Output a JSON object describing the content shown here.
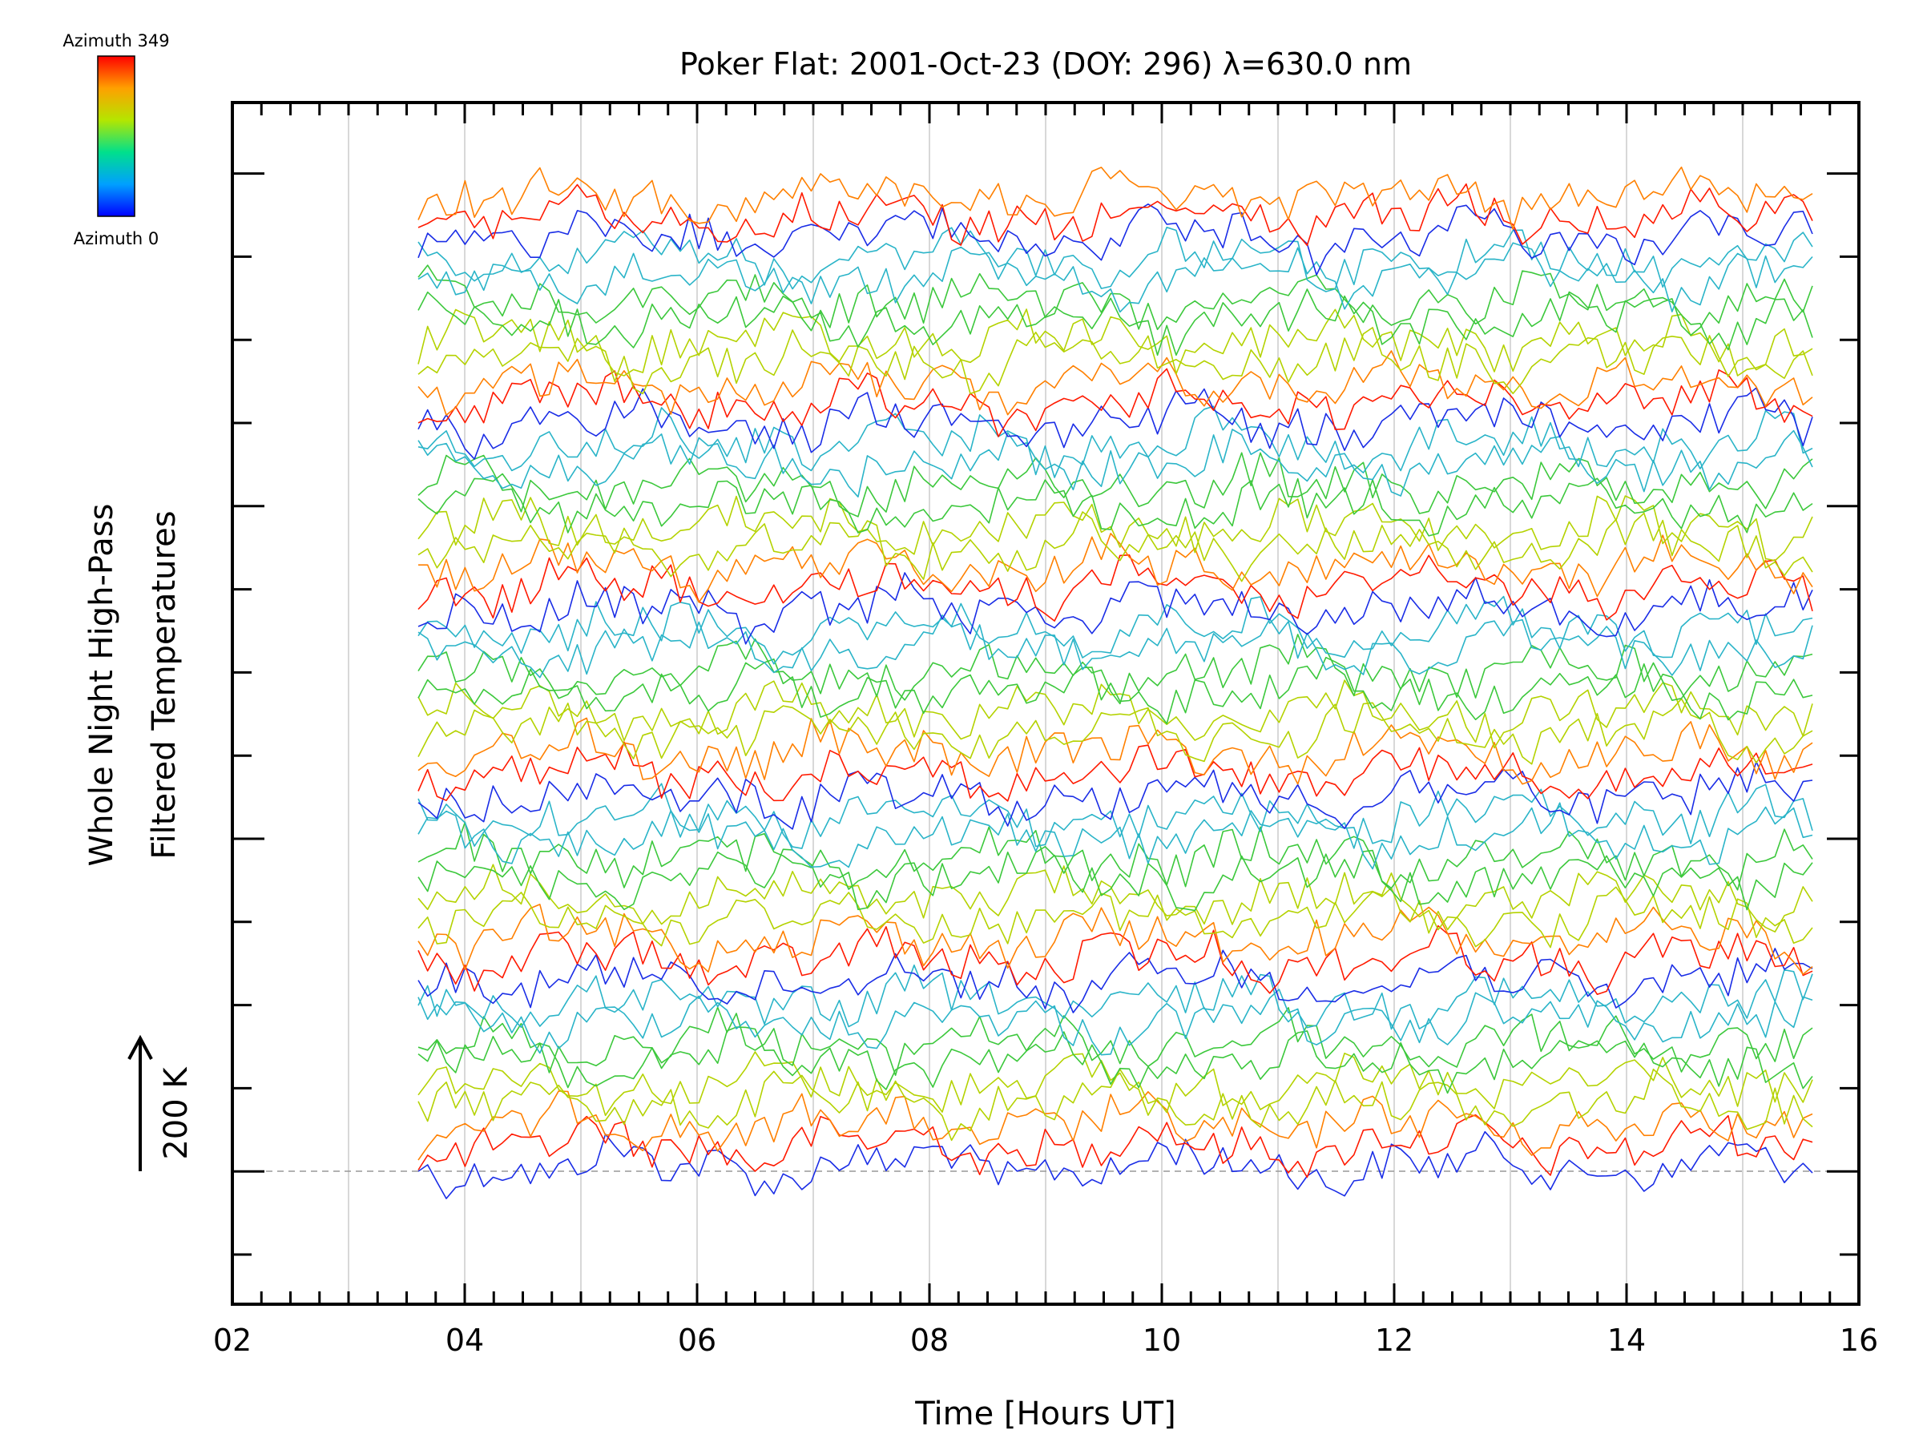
{
  "chart_data": {
    "type": "line",
    "title": "Poker Flat: 2001-Oct-23 (DOY: 296) λ=630.0 nm",
    "xlabel": "Time [Hours UT]",
    "ylabel_line1": "Whole Night High-Pass",
    "ylabel_line2": "Filtered Temperatures",
    "scale_bar_label": "200 K",
    "xlim": [
      2,
      16
    ],
    "x_tick_labels": [
      "02",
      "04",
      "06",
      "08",
      "10",
      "12",
      "14",
      "16"
    ],
    "x_ticks": [
      2,
      4,
      6,
      8,
      10,
      12,
      14,
      16
    ],
    "data_x_range": [
      3.6,
      15.6
    ],
    "n_series": 48,
    "offset_step_K": 50,
    "vertical_grid": true,
    "baseline_dashed": true,
    "colorbar": {
      "top_label": "Azimuth 349",
      "bottom_label": "Azimuth 0",
      "colormap": "rainbow"
    },
    "colors": {
      "blue": "#1a2de6",
      "red": "#ff1a00",
      "orange": "#ff8000",
      "yellow_green": "#b4d200",
      "green": "#3cc83c",
      "cyan": "#2ab4c8",
      "grid": "#cccccc"
    }
  }
}
